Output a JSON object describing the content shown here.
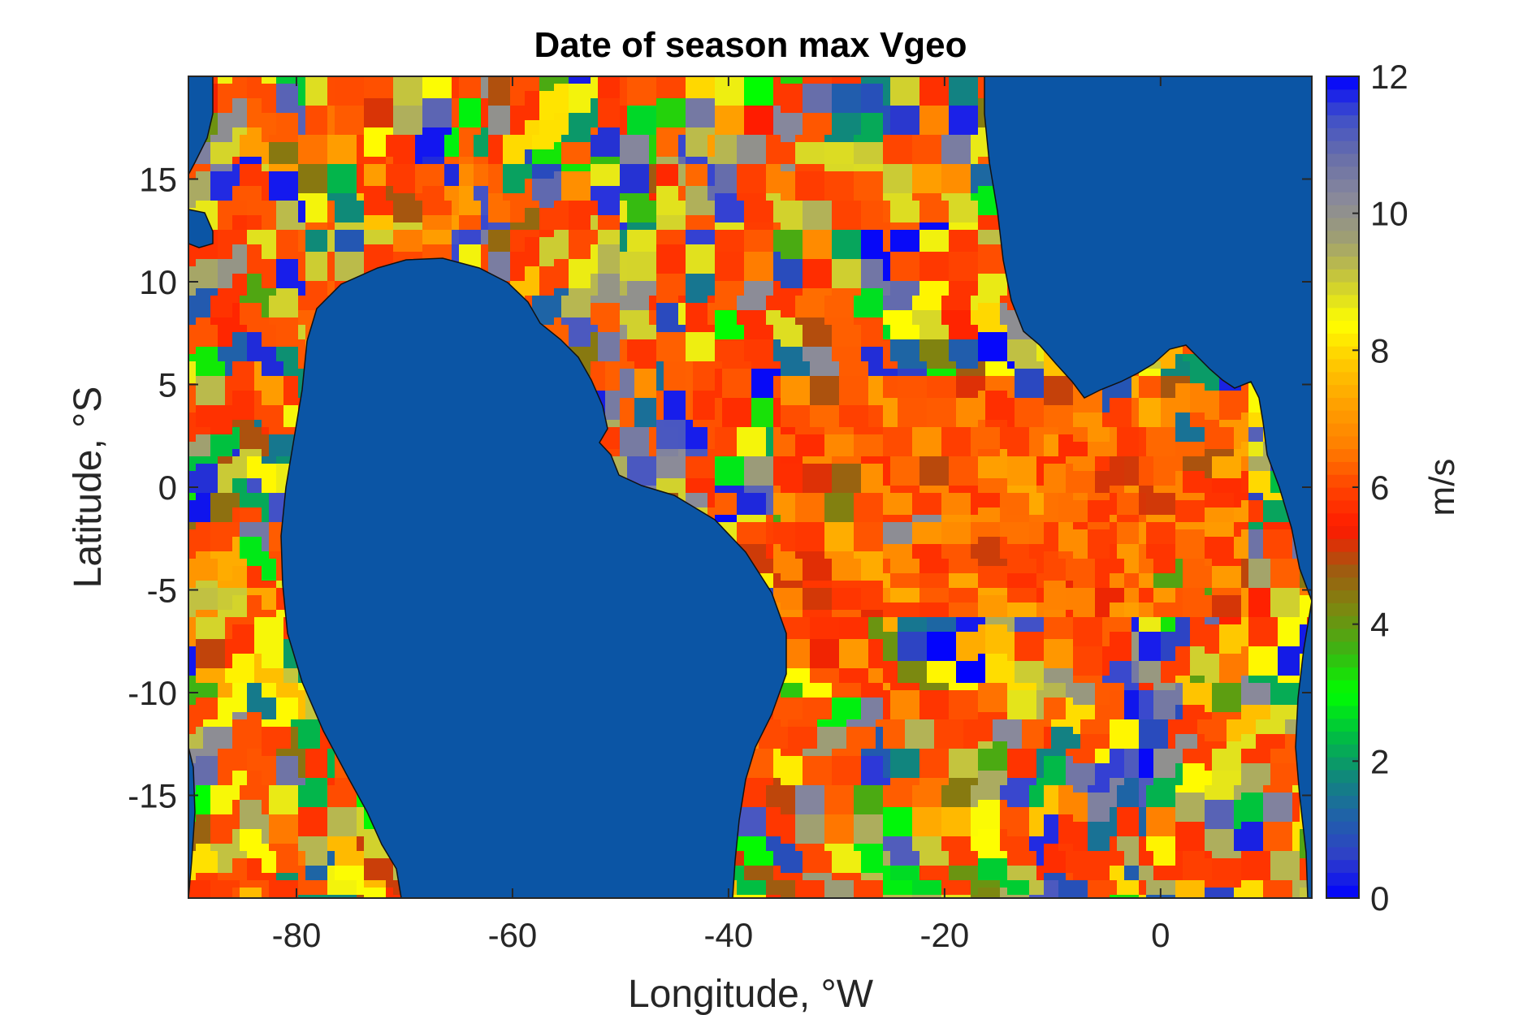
{
  "chart_data": {
    "type": "heatmap",
    "title": "Date of season max Vgeo",
    "xlabel": "Longitude, °W",
    "ylabel": "Latitude, °S",
    "xlim": [
      -90,
      14
    ],
    "ylim": [
      -20,
      20
    ],
    "x_ticks": [
      -80,
      -60,
      -40,
      -20,
      0
    ],
    "x_tick_labels": [
      "-80",
      "-60",
      "-40",
      "-20",
      "0"
    ],
    "y_ticks": [
      -15,
      -10,
      -5,
      0,
      5,
      10,
      15
    ],
    "y_tick_labels": [
      "-15",
      "-10",
      "-5",
      "0",
      "5",
      "10",
      "15"
    ],
    "grid": false,
    "colorbar": {
      "label": "m/s",
      "range": [
        0,
        12
      ],
      "ticks": [
        0,
        2,
        4,
        6,
        8,
        10,
        12
      ],
      "tick_labels": [
        "0",
        "2",
        "4",
        "6",
        "8",
        "10",
        "12"
      ],
      "colormap": [
        "#0000ff",
        "#2f3fc8",
        "#1f62a8",
        "#0f8a78",
        "#00c040",
        "#00ff00",
        "#3bb513",
        "#7a8a10",
        "#a05a10",
        "#ff1a00",
        "#ff4400",
        "#ff7f00",
        "#ffa000",
        "#ffc800",
        "#ffff00",
        "#cccc33",
        "#a0a070",
        "#8a8a9a",
        "#6a70a8",
        "#4050c8",
        "#0000ff"
      ]
    },
    "land_color": "#0b55a5",
    "notes_visible_features": "Equatorial band of values near 5-7 m/s between about -5 and 5 latitude, east of about -35 longitude; patchy values elsewhere over ocean"
  }
}
